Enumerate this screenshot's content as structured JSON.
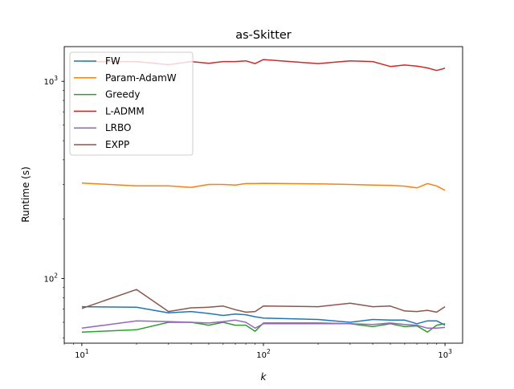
{
  "chart_data": {
    "type": "line",
    "title": "as-Skitter",
    "xlabel": "k",
    "ylabel": "Runtime (s)",
    "xscale": "log",
    "yscale": "log",
    "xlim": [
      8.0,
      1250
    ],
    "ylim": [
      47,
      1500
    ],
    "grid": false,
    "legend_position": "top-left",
    "x_ticks": [
      {
        "value": 10,
        "base": "10",
        "exp": "1"
      },
      {
        "value": 100,
        "base": "10",
        "exp": "2"
      },
      {
        "value": 1000,
        "base": "10",
        "exp": "3"
      }
    ],
    "y_ticks": [
      {
        "value": 100,
        "base": "10",
        "exp": "2"
      },
      {
        "value": 1000,
        "base": "10",
        "exp": "3"
      }
    ],
    "x": [
      10,
      20,
      30,
      40,
      50,
      60,
      70,
      80,
      90,
      100,
      200,
      300,
      400,
      500,
      600,
      700,
      800,
      900,
      1000
    ],
    "series": [
      {
        "name": "FW",
        "color": "#1f77b4",
        "values": [
          72,
          71.5,
          67,
          68,
          66.5,
          65,
          66,
          65.5,
          64,
          63,
          62,
          60,
          62,
          61.5,
          61.5,
          59,
          61,
          61,
          58
        ]
      },
      {
        "name": "Param-AdamW",
        "color": "#ff7f0e",
        "values": [
          305,
          295,
          295,
          290,
          300,
          300,
          298,
          303,
          303,
          304,
          302,
          300,
          298,
          297,
          294,
          288,
          303,
          295,
          280
        ]
      },
      {
        "name": "Greedy",
        "color": "#2ca02c",
        "values": [
          53.5,
          55,
          60,
          60,
          58,
          60,
          58,
          58,
          54,
          59.5,
          59.5,
          59,
          57,
          59,
          57,
          57.5,
          53.5,
          58,
          59
        ]
      },
      {
        "name": "L-ADMM",
        "color": "#d62728",
        "values": [
          1260,
          1260,
          1215,
          1260,
          1235,
          1260,
          1260,
          1270,
          1230,
          1290,
          1230,
          1270,
          1260,
          1190,
          1210,
          1195,
          1170,
          1135,
          1165
        ]
      },
      {
        "name": "LRBO",
        "color": "#9467bd",
        "values": [
          56,
          61,
          60.5,
          60,
          59.5,
          60.5,
          61.5,
          60,
          56,
          59,
          59,
          59,
          58.5,
          59.5,
          58.5,
          58,
          56,
          56,
          56.5
        ]
      },
      {
        "name": "EXPP",
        "color": "#8c564b",
        "values": [
          70.5,
          88,
          68,
          71,
          71.5,
          72.5,
          69.5,
          67.5,
          68,
          72.5,
          72,
          75,
          72,
          72.5,
          68.5,
          68,
          69,
          67.5,
          72
        ]
      }
    ]
  }
}
